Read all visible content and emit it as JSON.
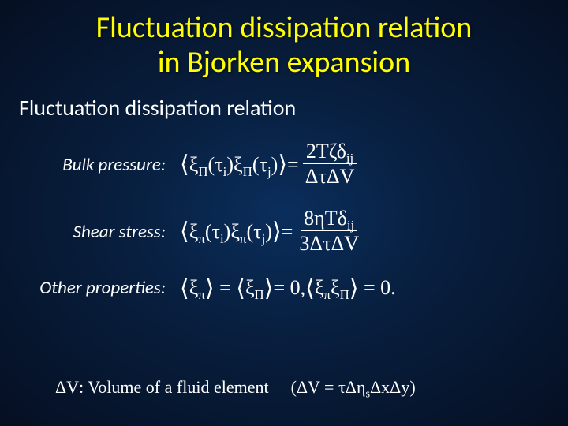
{
  "title_line1": "Fluctuation dissipation relation",
  "title_line2": "in Bjorken expansion",
  "subtitle": "Fluctuation dissipation relation",
  "rows": {
    "bulk": {
      "label": "Bulk pressure:"
    },
    "shear": {
      "label": "Shear stress:"
    },
    "other": {
      "label": "Other properties:"
    }
  },
  "eq": {
    "xi_Pi": "ξ",
    "Pi_sub": "Π",
    "xi_pi": "ξ",
    "pi_sub": "π",
    "tau_i": "τ",
    "i_sub": "i",
    "tau_j": "τ",
    "j_sub": "j",
    "eqsign": " = ",
    "bulk_num_a": "2T",
    "bulk_num_b": "ζδ",
    "ij_sub": "ij",
    "bulk_den": "ΔτΔV",
    "shear_num_a": "8ηTδ",
    "shear_den": "3ΔτΔV",
    "other_body": "= 0,   ",
    "other_tail": "= 0."
  },
  "footnote": {
    "dv": "ΔV",
    "desc": ": Volume of a fluid element",
    "paren_body": "ΔV = τΔη",
    "s_sub": "s",
    "paren_tail": "ΔxΔy"
  },
  "style": {
    "title_color": "#ffff00",
    "text_color": "#ffffff",
    "bg_inner": "#0a2e5c",
    "bg_outer": "#050f22",
    "title_fontsize": 38,
    "subtitle_fontsize": 28,
    "label_fontsize": 23,
    "eq_fontsize": 26,
    "footnote_fontsize": 22
  }
}
